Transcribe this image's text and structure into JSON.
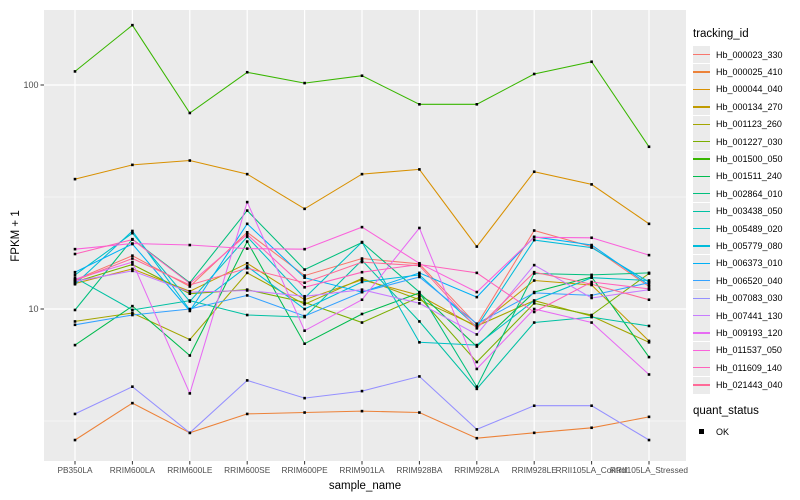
{
  "chart_data": {
    "type": "line",
    "title": "",
    "xlabel": "sample_name",
    "ylabel": "FPKM + 1",
    "y_scale": "log10",
    "ylim": [
      2.1,
      216
    ],
    "grid": "on",
    "legend_position": "right",
    "legend_title": "tracking_id",
    "quant_legend_title": "quant_status",
    "quant_status_label": "OK",
    "point_marker": "black-square",
    "panel_background": "#EBEBEB",
    "gridline_color": "#FFFFFF",
    "y_ticks": [
      {
        "value": 100,
        "label": "100"
      },
      {
        "value": 10,
        "label": "10"
      }
    ],
    "y_minor_ticks": [
      31.62,
      3.162
    ],
    "categories": [
      "PB350LA",
      "RRIM600LA",
      "RRIM600LE",
      "RRIM600SE",
      "RRIM600PE",
      "RRIM901LA",
      "RRIM928BA",
      "RRIM928LA",
      "RRIM928LE",
      "RRII105LA_Control",
      "RRII105LA_Stressed"
    ],
    "series": [
      {
        "name": "Hb_000023_330",
        "color": "#F8766D",
        "values": [
          13.5,
          17.3,
          12.6,
          22.0,
          14.1,
          16.8,
          15.9,
          8.5,
          22.4,
          19.0,
          12.6
        ]
      },
      {
        "name": "Hb_000025_410",
        "color": "#EC8239",
        "values": [
          2.6,
          3.8,
          2.8,
          3.4,
          3.45,
          3.5,
          3.45,
          2.65,
          2.8,
          2.95,
          3.3
        ]
      },
      {
        "name": "Hb_000044_040",
        "color": "#D89000",
        "values": [
          38,
          44,
          46,
          40,
          28,
          40,
          42,
          19,
          41,
          36,
          24
        ]
      },
      {
        "name": "Hb_000134_270",
        "color": "#C09B00",
        "values": [
          13.0,
          15.1,
          12.0,
          16.0,
          11.0,
          13.5,
          11.5,
          8.3,
          13.4,
          12.8,
          7.2
        ]
      },
      {
        "name": "Hb_001123_260",
        "color": "#A3A500",
        "values": [
          8.8,
          9.6,
          7.3,
          14.5,
          10.5,
          13.7,
          11.0,
          8.4,
          10.9,
          9.3,
          7.1
        ]
      },
      {
        "name": "Hb_001227_030",
        "color": "#7CAE00",
        "values": [
          13.2,
          15.8,
          11.7,
          12.2,
          10.7,
          8.7,
          11.3,
          5.8,
          10.6,
          9.4,
          14.4
        ]
      },
      {
        "name": "Hb_001500_050",
        "color": "#39B600",
        "values": [
          115,
          185,
          75,
          114,
          102,
          110,
          82,
          82,
          112,
          127,
          53
        ]
      },
      {
        "name": "Hb_001511_240",
        "color": "#00BB4E",
        "values": [
          6.9,
          10.3,
          6.2,
          20.0,
          7.0,
          9.5,
          11.8,
          6.8,
          11.9,
          13.9,
          6.1
        ]
      },
      {
        "name": "Hb_002864_010",
        "color": "#00BF7D",
        "values": [
          9.9,
          20.5,
          13.1,
          27.5,
          15.0,
          19.8,
          11.9,
          4.5,
          14.4,
          14.2,
          14.5
        ]
      },
      {
        "name": "Hb_003438_050",
        "color": "#00C1A3",
        "values": [
          13.8,
          9.9,
          10.9,
          9.4,
          9.2,
          16.5,
          8.8,
          4.4,
          8.7,
          9.2,
          8.4
        ]
      },
      {
        "name": "Hb_005489_020",
        "color": "#00C0C4",
        "values": [
          14.2,
          21.8,
          10.8,
          21.0,
          11.2,
          19.9,
          7.1,
          6.9,
          10.9,
          13.8,
          13.4
        ]
      },
      {
        "name": "Hb_005779_080",
        "color": "#00BBDA",
        "values": [
          12.9,
          22.3,
          9.9,
          15.5,
          10.0,
          13.2,
          14.2,
          8.3,
          20.3,
          18.8,
          13.2
        ]
      },
      {
        "name": "Hb_006373_010",
        "color": "#00B0F6",
        "values": [
          14.6,
          19.5,
          9.8,
          24.0,
          13.8,
          11.9,
          14.5,
          11.3,
          21.0,
          19.3,
          12.8
        ]
      },
      {
        "name": "Hb_006520_040",
        "color": "#35A2FF",
        "values": [
          8.5,
          9.4,
          10.0,
          11.5,
          9.3,
          11.9,
          13.9,
          8.6,
          11.8,
          11.5,
          13.1
        ]
      },
      {
        "name": "Hb_007083_030",
        "color": "#9590FF",
        "values": [
          3.4,
          4.5,
          2.8,
          4.8,
          4.0,
          4.3,
          5.0,
          2.9,
          3.7,
          3.7,
          2.6
        ]
      },
      {
        "name": "Hb_007441_130",
        "color": "#C77CFF",
        "values": [
          13.3,
          14.8,
          11.9,
          12.1,
          11.4,
          12.2,
          10.6,
          7.7,
          15.7,
          11.2,
          12.2
        ]
      },
      {
        "name": "Hb_009193_120",
        "color": "#E76BF3",
        "values": [
          13.6,
          16.2,
          4.2,
          30.0,
          8.0,
          11.0,
          23.0,
          5.4,
          10.0,
          8.7,
          5.1
        ]
      },
      {
        "name": "Hb_011537_050",
        "color": "#FA62DB",
        "values": [
          18.5,
          19.6,
          19.3,
          18.6,
          18.5,
          23.2,
          16.0,
          11.9,
          20.9,
          20.8,
          17.4
        ]
      },
      {
        "name": "Hb_011609_140",
        "color": "#FF62BC",
        "values": [
          17.6,
          20.4,
          13.0,
          21.5,
          12.5,
          14.6,
          15.8,
          14.5,
          9.7,
          13.2,
          12.3
        ]
      },
      {
        "name": "Hb_021443_040",
        "color": "#FF6A98",
        "values": [
          13.4,
          16.8,
          12.8,
          15.2,
          13.1,
          16.2,
          15.6,
          8.2,
          14.6,
          12.9,
          11.0
        ]
      }
    ]
  }
}
